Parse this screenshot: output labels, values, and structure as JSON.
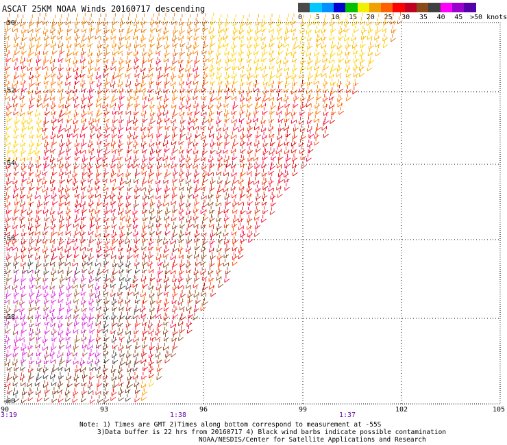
{
  "title": "ASCAT 25KM NOAA Winds 20160717 descending",
  "colorbar": {
    "colors": [
      "#4a4a4a",
      "#00c8ff",
      "#0090ff",
      "#0000d0",
      "#00c000",
      "#f0f000",
      "#f0a000",
      "#ff6000",
      "#ff0000",
      "#c00020",
      "#8a4a1a",
      "#404040",
      "#ff00ff",
      "#9900cc",
      "#5500aa"
    ],
    "ticks": [
      "0",
      "5",
      "10",
      "15",
      "20",
      "25",
      "30",
      "35",
      "40",
      "45",
      ">50 knots"
    ]
  },
  "lat_labels": [
    "-50",
    "-52",
    "-54",
    "-56",
    "-58",
    "-60"
  ],
  "lon_labels": [
    "90",
    "93",
    "96",
    "99",
    "102",
    "105"
  ],
  "times": [
    "3:19",
    "1:38",
    "1:37"
  ],
  "note": [
    "Note: 1) Times are GMT 2)Times along bottom correspond to measurement at -55S",
    "3)Data buffer is 22 hrs from 20160717 4) Black wind barbs indicate possible contamination",
    "NOAA/NESDIS/Center for Satellite Applications and Research"
  ]
}
